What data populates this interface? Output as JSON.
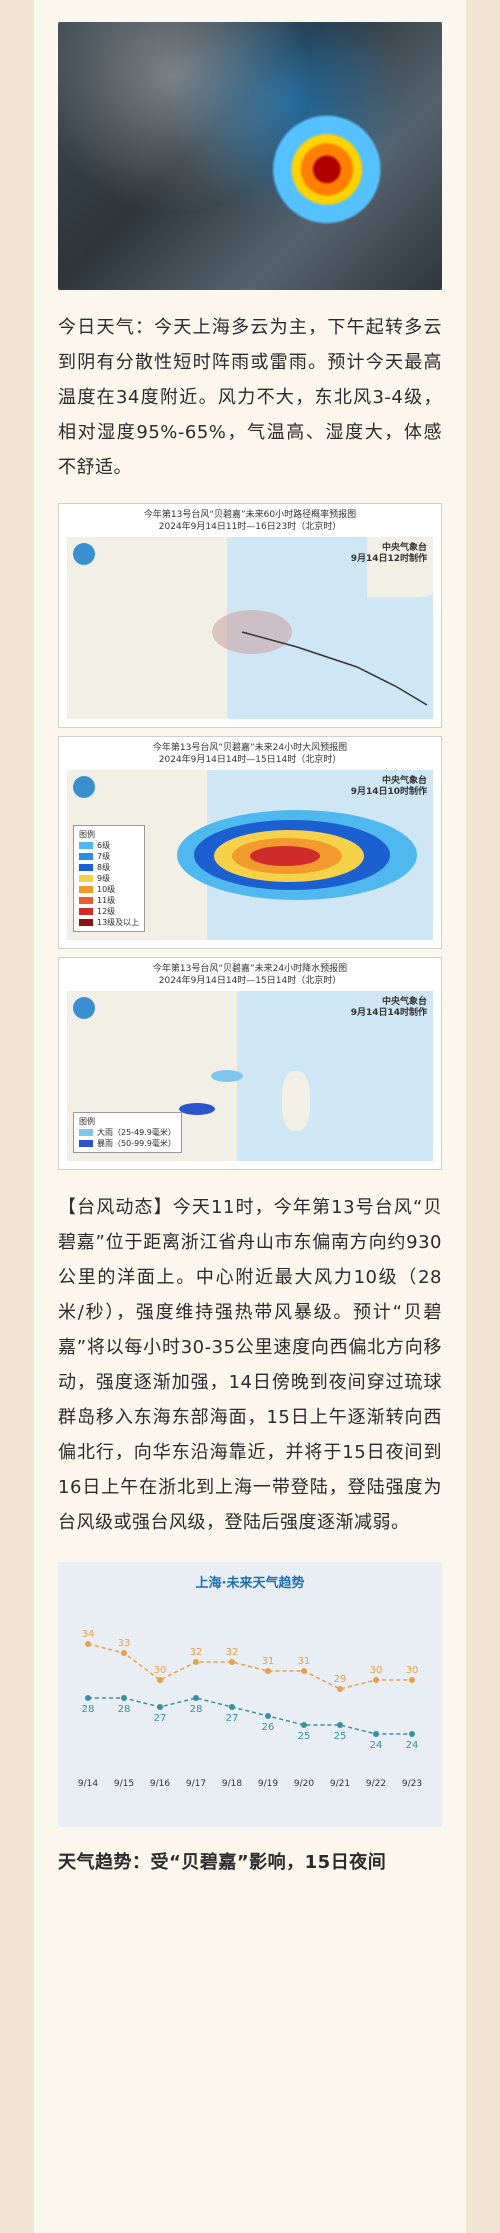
{
  "article": {
    "today_weather": "今日天气：今天上海多云为主，下午起转多云到阴有分散性短时阵雨或雷雨。预计今天最高温度在34度附近。风力不大，东北风3-4级，相对湿度95%-65%，气温高、湿度大，体感不舒适。",
    "typhoon_dynamics": "【台风动态】今天11时，今年第13号台风“贝碧嘉”位于距离浙江省舟山市东偏南方向约930公里的洋面上。中心附近最大风力10级（28米/秒），强度维持强热带风暴级。预计“贝碧嘉”将以每小时30-35公里速度向西偏北方向移动，强度逐渐加强，14日傍晚到夜间穿过琉球群岛移入东海东部海面，15日上午逐渐转向西偏北行，向华东沿海靠近，并将于15日夜间到16日上午在浙北到上海一带登陆，登陆强度为台风级或强台风级，登陆后强度逐渐减弱。",
    "trend_intro": "天气趋势：受“贝碧嘉”影响，15日夜间"
  },
  "maps": {
    "track": {
      "title1": "今年第13号台风“贝碧嘉”未来60小时路径概率预报图",
      "title2": "2024年9月14日11时—16日23时（北京时）",
      "agency": "中央气象台",
      "issued": "9月14日12时制作"
    },
    "wind": {
      "title1": "今年第13号台风“贝碧嘉”未来24小时大风预报图",
      "title2": "2024年9月14日14时—15日14时（北京时）",
      "agency": "中央气象台",
      "issued": "9月14日10时制作",
      "legend_title": "图例",
      "legend": [
        "6级",
        "7级",
        "8级",
        "9级",
        "10级",
        "11级",
        "12级",
        "13级及以上"
      ],
      "legend_colors": [
        "#4fb8ee",
        "#2b8fe0",
        "#1c5fd0",
        "#f6d24a",
        "#f39a2f",
        "#e7602a",
        "#cf2b2b",
        "#8e1010"
      ]
    },
    "rain": {
      "title1": "今年第13号台风“贝碧嘉”未来24小时降水预报图",
      "title2": "2024年9月14日14时—15日14时（北京时）",
      "agency": "中央气象台",
      "issued": "9月14日14时制作",
      "legend_title": "图例",
      "legend": [
        "大雨（25-49.9毫米）",
        "暴雨（50-99.9毫米）"
      ],
      "legend_colors": [
        "#7ec6f0",
        "#2b55c8"
      ]
    }
  },
  "trend_chart": {
    "title": "上海·未来天气趋势",
    "dates": [
      "9/14",
      "9/15",
      "9/16",
      "9/17",
      "9/18",
      "9/19",
      "9/20",
      "9/21",
      "9/22",
      "9/23"
    ],
    "high": [
      34,
      33,
      30,
      32,
      32,
      31,
      31,
      29,
      30,
      30
    ],
    "low": [
      28,
      28,
      27,
      28,
      27,
      26,
      25,
      25,
      24,
      24
    ],
    "high_color": "#e8a04a",
    "low_color": "#3a8fa0"
  }
}
